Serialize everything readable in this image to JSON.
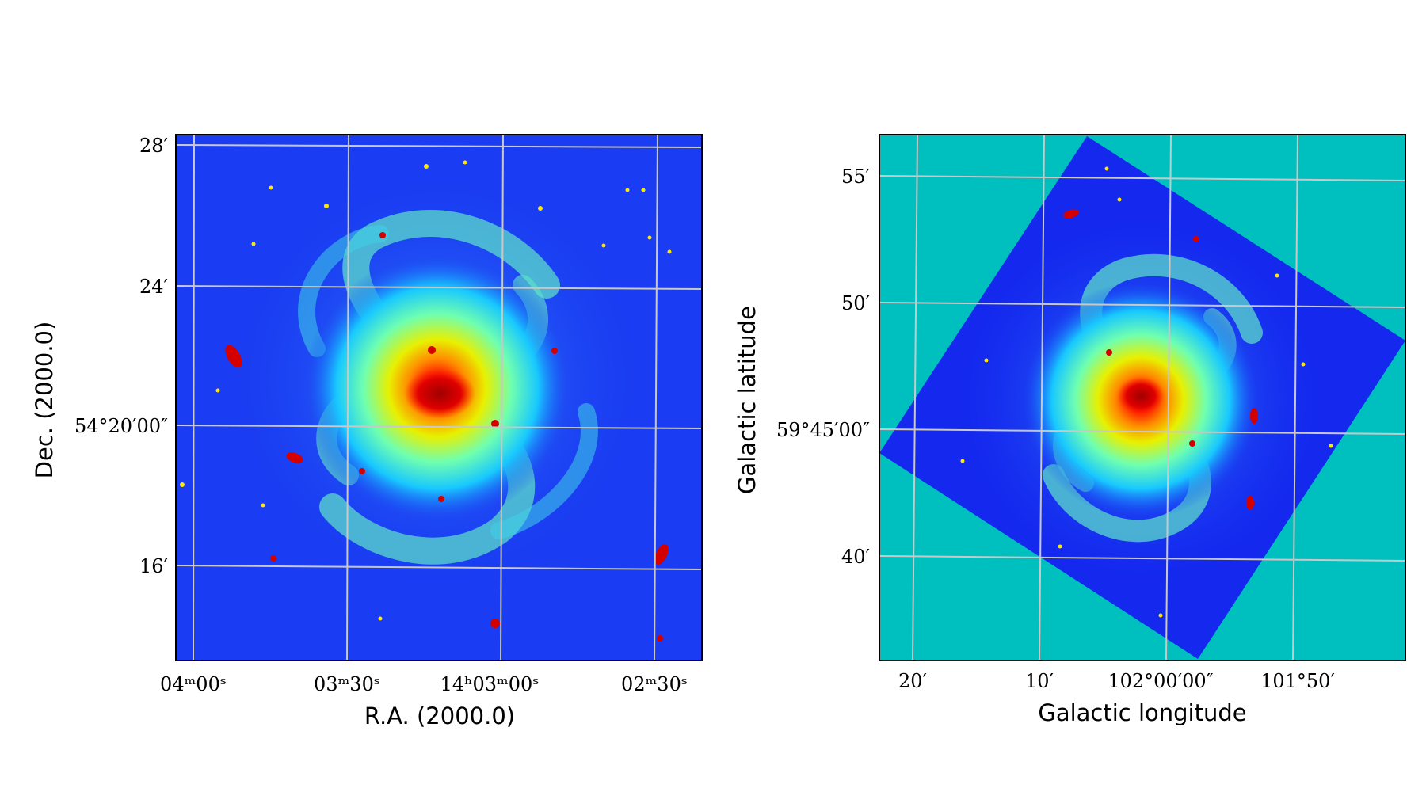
{
  "left_panel": {
    "xlabel": "R.A. (2000.0)",
    "ylabel": "Dec. (2000.0)",
    "xticks": [
      {
        "label": "04ᵐ00ˢ"
      },
      {
        "label": "03ᵐ30ˢ"
      },
      {
        "label": "14ʰ03ᵐ00ˢ"
      },
      {
        "label": "02ᵐ30ˢ"
      }
    ],
    "yticks": [
      {
        "label": "28′"
      },
      {
        "label": "24′"
      },
      {
        "label": "54°20′00″"
      },
      {
        "label": "16′"
      }
    ],
    "colors": {
      "background": "#1a3cf2",
      "grid": "#c8c8c8"
    }
  },
  "right_panel": {
    "xlabel": "Galactic longitude",
    "ylabel": "Galactic latitude",
    "xticks": [
      {
        "label": "20′"
      },
      {
        "label": "10′"
      },
      {
        "label": "102°00′00″"
      },
      {
        "label": "101°50′"
      }
    ],
    "yticks": [
      {
        "label": "55′"
      },
      {
        "label": "50′"
      },
      {
        "label": "59°45′00″"
      },
      {
        "label": "40′"
      }
    ],
    "colors": {
      "background": "#00bfbf",
      "image": "#1428ee",
      "grid": "#c8c8c8"
    }
  }
}
